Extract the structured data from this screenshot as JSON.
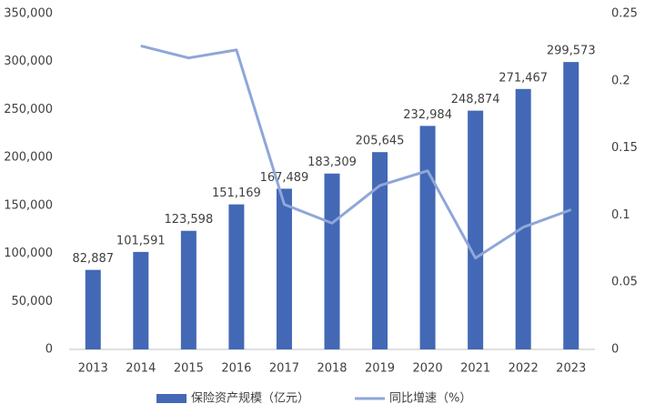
{
  "chart_data": {
    "type": "bar",
    "categories": [
      "2013",
      "2014",
      "2015",
      "2016",
      "2017",
      "2018",
      "2019",
      "2020",
      "2021",
      "2022",
      "2023"
    ],
    "series": [
      {
        "name": "保险资产规模（亿元）",
        "type": "bar",
        "color": "#4368b5",
        "values": [
          82887,
          101591,
          123598,
          151169,
          167489,
          183309,
          205645,
          232984,
          248874,
          271467,
          299573
        ],
        "value_labels": [
          "82,887",
          "101,591",
          "123,598",
          "151,169",
          "167,489",
          "183,309",
          "205,645",
          "232,984",
          "248,874",
          "271,467",
          "299,573"
        ]
      },
      {
        "name": "同比增速（%）",
        "type": "line",
        "axis": "y2",
        "color": "#8fa6d9",
        "values": [
          null,
          0.226,
          0.217,
          0.223,
          0.108,
          0.094,
          0.122,
          0.133,
          0.068,
          0.091,
          0.104
        ]
      }
    ],
    "ylim": [
      0,
      350000
    ],
    "yticks": [
      0,
      {
        "value": 50000,
        "label": "50,000"
      },
      {
        "value": 100000,
        "label": "100,000"
      },
      {
        "value": 150000,
        "label": "150,000"
      },
      {
        "value": 200000,
        "label": "200,000"
      },
      {
        "value": 250000,
        "label": "250,000"
      },
      {
        "value": 300000,
        "label": "300,000"
      },
      {
        "value": 350000,
        "label": "350,000"
      }
    ],
    "y2lim": [
      0,
      0.25
    ],
    "y2ticks": [
      0,
      0.05,
      0.1,
      0.15,
      0.2,
      0.25
    ],
    "grid": false,
    "legend": "bottom"
  }
}
